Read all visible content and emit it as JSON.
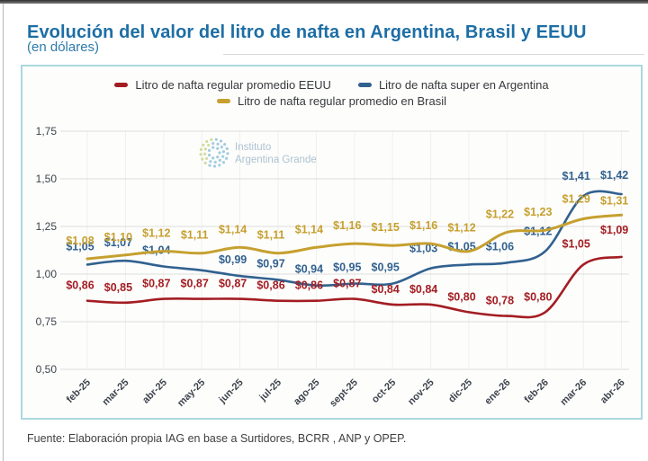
{
  "page": {
    "title": "Evolución del valor del litro de nafta en Argentina, Brasil y EEUU",
    "subtitle": "(en dólares)",
    "source": "Fuente: Elaboración propia IAG en base a Surtidores, BCRR , ANP y OPEP."
  },
  "watermark": {
    "line1": "Instituto",
    "line2": "Argentina Grande"
  },
  "legend": [
    {
      "label": "Litro de nafta regular promedio EEUU",
      "color": "#a31d22"
    },
    {
      "label": "Litro de nafta super en Argentina",
      "color": "#31618f"
    },
    {
      "label": "Litro de nafta regular promedio en Brasil",
      "color": "#c6a02f"
    }
  ],
  "chart_data": {
    "type": "line",
    "title": "Evolución del valor del litro de nafta en Argentina, Brasil y EEUU (en dólares)",
    "categories": [
      "feb-25",
      "mar-25",
      "abr-25",
      "may-25",
      "jun-25",
      "jul-25",
      "ago-25",
      "sept-25",
      "oct-25",
      "nov-25",
      "dic-25",
      "ene-26",
      "feb-26",
      "mar-26",
      "abr-26"
    ],
    "xlabel": "",
    "ylabel": "",
    "ylim": [
      0.5,
      1.75
    ],
    "yticks": [
      "1,75",
      "1,50",
      "1,25",
      "1,00",
      "0,75",
      "0,50"
    ],
    "grid": true,
    "legend_position": "top",
    "series": [
      {
        "id": "eeuu",
        "name": "Litro de nafta regular promedio EEUU",
        "color": "#a31d22",
        "values": [
          0.86,
          0.85,
          0.87,
          0.87,
          0.87,
          0.86,
          0.86,
          0.87,
          0.84,
          0.84,
          0.8,
          0.78,
          0.8,
          1.05,
          1.09
        ],
        "labels": [
          "$0,86",
          "$0,85",
          "$0,87",
          "$0,87",
          "$0,87",
          "$0,86",
          "$0,86",
          "$0,87",
          "$0,84",
          "$0,84",
          "$0,80",
          "$0,78",
          "$0,80",
          "$1,05",
          "$1,09"
        ]
      },
      {
        "id": "argentina",
        "name": "Litro de nafta super en Argentina",
        "color": "#31618f",
        "values": [
          1.05,
          1.07,
          1.04,
          1.02,
          0.99,
          0.97,
          0.94,
          0.95,
          0.95,
          1.03,
          1.05,
          1.06,
          1.12,
          1.41,
          1.42
        ],
        "labels": [
          "$1,05",
          "$1,07",
          "$1,04",
          "",
          "$0,99",
          "$0,97",
          "$0,94",
          "$0,95",
          "$0,95",
          "$1,03",
          "$1,05",
          "$1,06",
          "$1,12",
          "$1,41",
          "$1,42"
        ]
      },
      {
        "id": "brasil",
        "name": "Litro de nafta regular promedio en Brasil",
        "color": "#c6a02f",
        "values": [
          1.08,
          1.1,
          1.12,
          1.11,
          1.14,
          1.11,
          1.14,
          1.16,
          1.15,
          1.16,
          1.12,
          1.22,
          1.23,
          1.29,
          1.31
        ],
        "labels": [
          "$1,08",
          "$1,10",
          "$1,12",
          "$1,11",
          "$1,14",
          "$1,11",
          "$1,14",
          "$1,16",
          "$1,15",
          "$1,16",
          "$1,12",
          "$1,22",
          "$1,23",
          "$1,29",
          "$1,31"
        ]
      }
    ]
  },
  "colors": {
    "title": "#1d6ea5",
    "card_border": "#abd8df",
    "grid": "#dddddc",
    "grid_vertical": "#efefed",
    "axis_text": "#3d434b",
    "watermark_text": "#a9bfce",
    "watermark_dot_blue": "#9fcade",
    "watermark_dot_green": "#cfdc9a"
  }
}
